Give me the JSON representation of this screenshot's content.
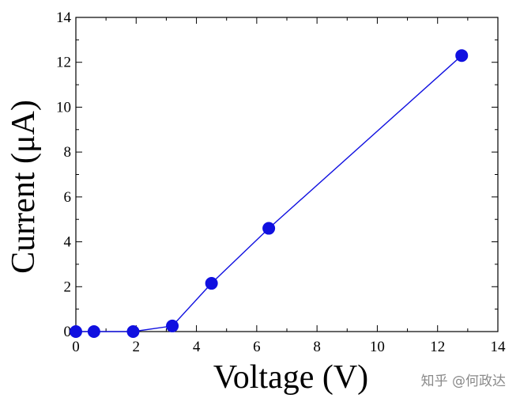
{
  "chart_data": {
    "type": "line",
    "xlabel": "Voltage (V)",
    "ylabel": "Current (μA)",
    "xlim": [
      0,
      14
    ],
    "ylim": [
      0,
      14
    ],
    "xticks": [
      0,
      2,
      4,
      6,
      8,
      10,
      12,
      14
    ],
    "yticks": [
      0,
      2,
      4,
      6,
      8,
      10,
      12,
      14
    ],
    "grid": false,
    "series": [
      {
        "color": "#1010e0",
        "marker": "circle",
        "x": [
          0.0,
          0.6,
          1.9,
          3.2,
          4.5,
          6.4,
          12.8
        ],
        "y": [
          0.0,
          0.0,
          0.0,
          0.25,
          2.15,
          4.6,
          12.3
        ]
      }
    ]
  },
  "watermark": "知乎 @何政达"
}
